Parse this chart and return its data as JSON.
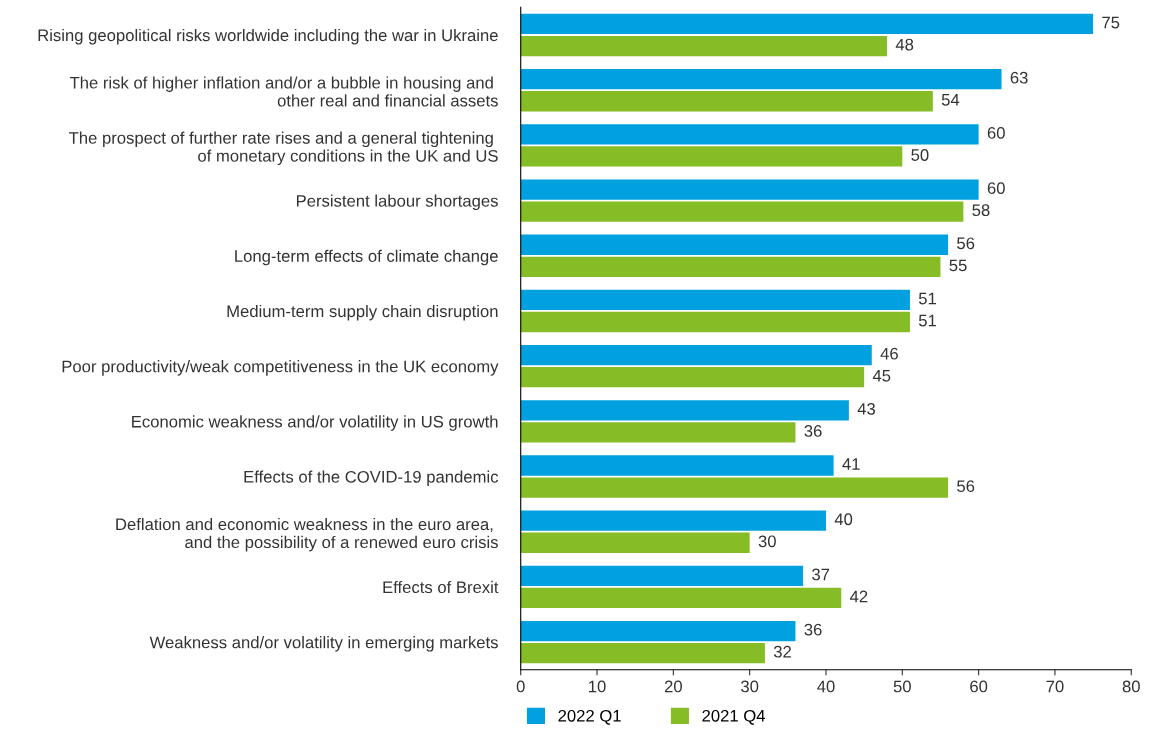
{
  "chart_data": {
    "type": "bar",
    "orientation": "horizontal",
    "categories": [
      "Rising geopolitical risks worldwide including the war in Ukraine",
      "The risk of higher inflation and/or a bubble in housing and \nother real and financial assets",
      "The prospect of further rate rises and a general tightening \nof monetary conditions in the UK and US",
      "Persistent labour shortages",
      "Long-term effects of climate change",
      "Medium-term supply chain disruption",
      "Poor productivity/weak competitiveness in the UK economy",
      "Economic weakness and/or volatility in US growth",
      "Effects of the COVID-19 pandemic",
      "Deflation and economic weakness in the euro area, \nand the possibility of a renewed euro crisis",
      "Effects of Brexit",
      "Weakness and/or volatility in emerging markets"
    ],
    "series": [
      {
        "name": "2022 Q1",
        "color": "#00a1de",
        "values": [
          75,
          63,
          60,
          60,
          56,
          51,
          46,
          43,
          41,
          40,
          37,
          36
        ]
      },
      {
        "name": "2021 Q4",
        "color": "#86bc25",
        "values": [
          48,
          54,
          50,
          58,
          55,
          51,
          45,
          36,
          56,
          30,
          42,
          32
        ]
      }
    ],
    "xlim": [
      0,
      80
    ],
    "xticks": [
      0,
      10,
      20,
      30,
      40,
      50,
      60,
      70,
      80
    ],
    "data_labels": true,
    "grid": false,
    "legend": "bottom"
  }
}
